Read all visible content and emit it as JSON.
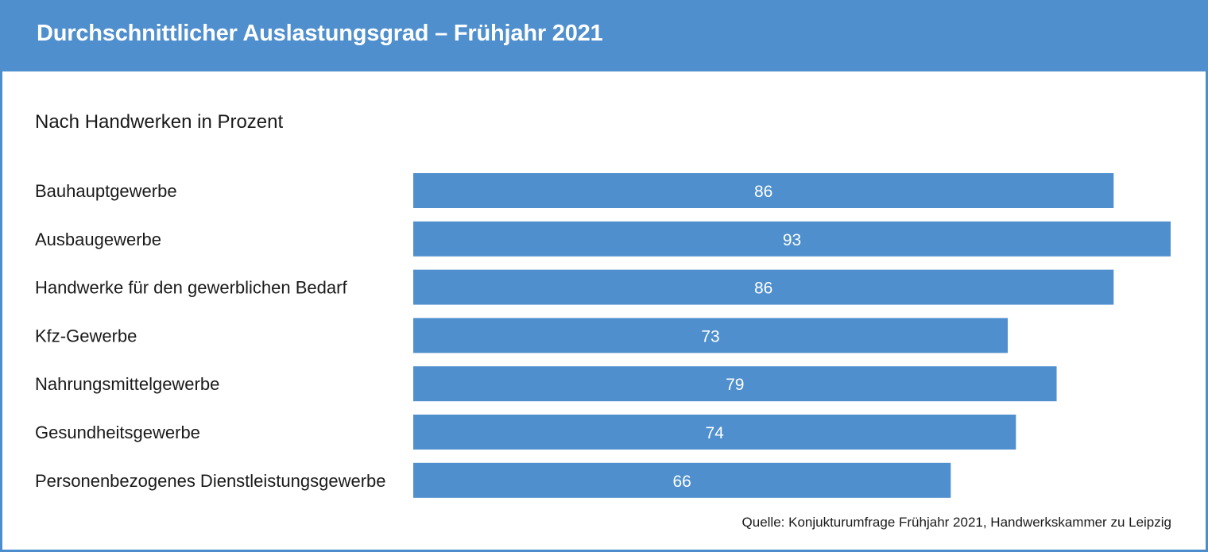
{
  "header": {
    "title": "Durchschnittlicher Auslastungsgrad – Frühjahr 2021"
  },
  "colors": {
    "header": "#4f8fcd",
    "bar": "#4f8fcd",
    "border": "#4a8ccc"
  },
  "chart_data": {
    "type": "bar",
    "orientation": "horizontal",
    "subtitle": "Nach Handwerken in Prozent",
    "categories": [
      "Bauhauptgewerbe",
      "Ausbaugewerbe",
      "Handwerke für den gewerblichen Bedarf",
      "Kfz-Gewerbe",
      "Nahrungsmittelgewerbe",
      "Gesundheitsgewerbe",
      "Personenbezogenes Dienstleistungsgewerbe"
    ],
    "values": [
      86,
      93,
      86,
      73,
      79,
      74,
      66
    ],
    "data_labels": [
      "86",
      "93",
      "86",
      "73",
      "79",
      "74",
      "66"
    ],
    "xlim": [
      0,
      93
    ],
    "grid": false,
    "legend": "none",
    "source": "Quelle: Konjukturumfrage Frühjahr 2021, Handwerkskammer zu Leipzig"
  }
}
